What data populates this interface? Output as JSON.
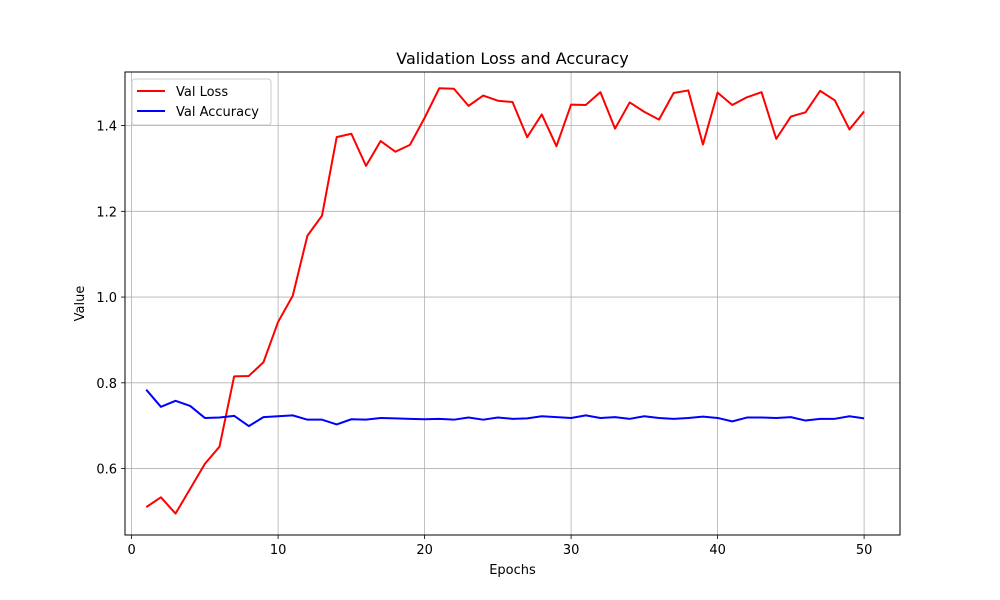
{
  "chart_data": {
    "type": "line",
    "title": "Validation Loss and Accuracy",
    "xlabel": "Epochs",
    "ylabel": "Value",
    "xlim": [
      -0.45,
      52.45
    ],
    "ylim": [
      0.445,
      1.525
    ],
    "xticks": [
      0,
      10,
      20,
      30,
      40,
      50
    ],
    "yticks": [
      0.6,
      0.8,
      1.0,
      1.2,
      1.4
    ],
    "ytick_labels": [
      "0.6",
      "0.8",
      "1.0",
      "1.2",
      "1.4"
    ],
    "grid": true,
    "legend_position": "top-left",
    "x": [
      1,
      2,
      3,
      4,
      5,
      6,
      7,
      8,
      9,
      10,
      11,
      12,
      13,
      14,
      15,
      16,
      17,
      18,
      19,
      20,
      21,
      22,
      23,
      24,
      25,
      26,
      27,
      28,
      29,
      30,
      31,
      32,
      33,
      34,
      35,
      36,
      37,
      38,
      39,
      40,
      41,
      42,
      43,
      44,
      45,
      46,
      47,
      48,
      49,
      50
    ],
    "series": [
      {
        "name": "Val Loss",
        "color": "#ff0000",
        "values": [
          0.51,
          0.533,
          0.495,
          0.553,
          0.611,
          0.651,
          0.815,
          0.816,
          0.848,
          0.942,
          1.003,
          1.143,
          1.19,
          1.373,
          1.381,
          1.306,
          1.364,
          1.339,
          1.355,
          1.418,
          1.487,
          1.486,
          1.446,
          1.47,
          1.458,
          1.455,
          1.373,
          1.426,
          1.352,
          1.449,
          1.448,
          1.478,
          1.393,
          1.454,
          1.432,
          1.414,
          1.476,
          1.482,
          1.356,
          1.477,
          1.448,
          1.466,
          1.478,
          1.369,
          1.421,
          1.431,
          1.481,
          1.459,
          1.391,
          1.433
        ]
      },
      {
        "name": "Val Accuracy",
        "color": "#0000ff",
        "values": [
          0.784,
          0.744,
          0.758,
          0.746,
          0.718,
          0.719,
          0.723,
          0.699,
          0.72,
          0.722,
          0.724,
          0.714,
          0.714,
          0.703,
          0.715,
          0.714,
          0.718,
          0.717,
          0.716,
          0.715,
          0.716,
          0.714,
          0.719,
          0.714,
          0.719,
          0.716,
          0.717,
          0.722,
          0.72,
          0.718,
          0.724,
          0.718,
          0.72,
          0.716,
          0.722,
          0.718,
          0.716,
          0.718,
          0.721,
          0.718,
          0.71,
          0.719,
          0.719,
          0.718,
          0.72,
          0.712,
          0.716,
          0.716,
          0.722,
          0.717
        ]
      }
    ]
  }
}
